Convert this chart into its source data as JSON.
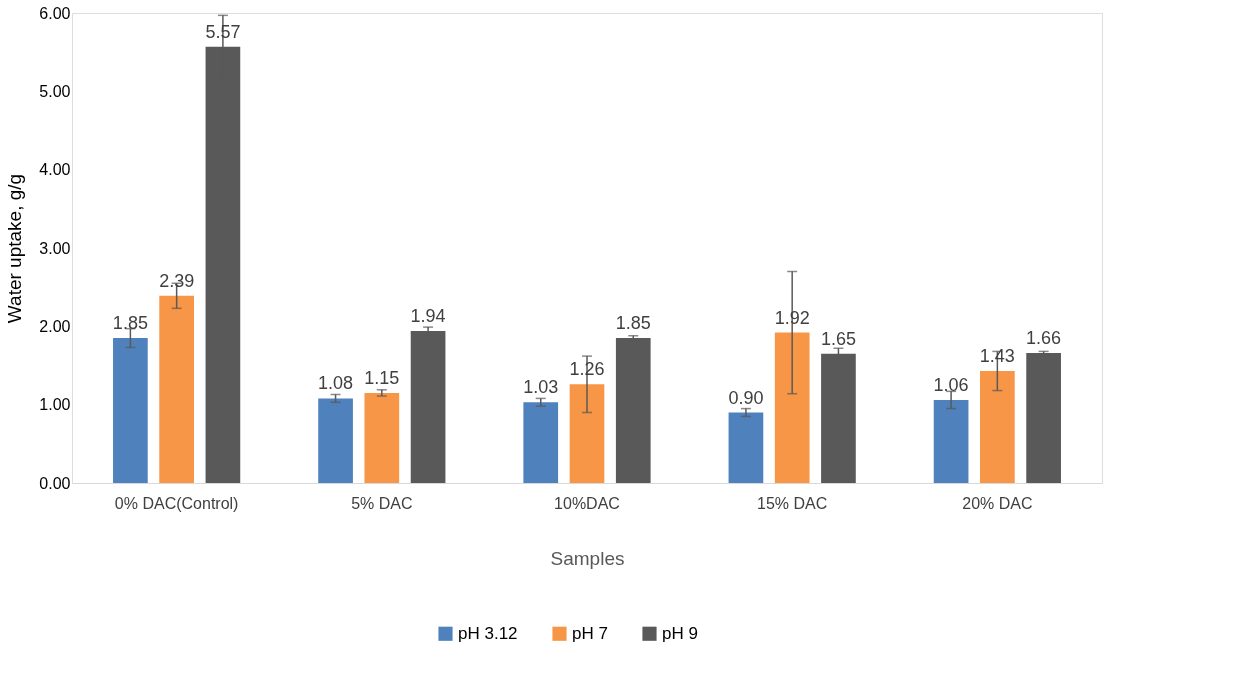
{
  "chart_data": {
    "type": "bar",
    "xlabel": "Samples",
    "ylabel": "Water uptake, g/g",
    "categories": [
      "0% DAC(Control)",
      "5% DAC",
      "10%DAC",
      "15% DAC",
      "20% DAC"
    ],
    "series": [
      {
        "name": "pH  3.12",
        "color": "#4f81bd",
        "values": [
          1.85,
          1.08,
          1.03,
          0.9,
          1.06
        ],
        "value_labels": [
          "1.85",
          "1.08",
          "1.03",
          "0.90",
          "1.06"
        ],
        "errors": [
          0.12,
          0.05,
          0.05,
          0.05,
          0.11
        ]
      },
      {
        "name": "pH  7",
        "color": "#f79646",
        "values": [
          2.39,
          1.15,
          1.26,
          1.92,
          1.43
        ],
        "value_labels": [
          "2.39",
          "1.15",
          "1.26",
          "1.92",
          "1.43"
        ],
        "errors": [
          0.16,
          0.04,
          0.36,
          0.78,
          0.25
        ]
      },
      {
        "name": "pH 9",
        "color": "#595959",
        "values": [
          5.57,
          1.94,
          1.85,
          1.65,
          1.66
        ],
        "value_labels": [
          "5.57",
          "1.94",
          "1.85",
          "1.65",
          "1.66"
        ],
        "errors": [
          0.4,
          0.05,
          0.03,
          0.07,
          0.02
        ]
      }
    ],
    "ylim": [
      0,
      6
    ],
    "yticks": [
      {
        "value": 0,
        "label": "0.00"
      },
      {
        "value": 1,
        "label": "1.00"
      },
      {
        "value": 2,
        "label": "2.00"
      },
      {
        "value": 3,
        "label": "3.00"
      },
      {
        "value": 4,
        "label": "4.00"
      },
      {
        "value": 5,
        "label": "5.00"
      },
      {
        "value": 6,
        "label": "6.00"
      }
    ],
    "grid": false,
    "legend": "bottom"
  }
}
